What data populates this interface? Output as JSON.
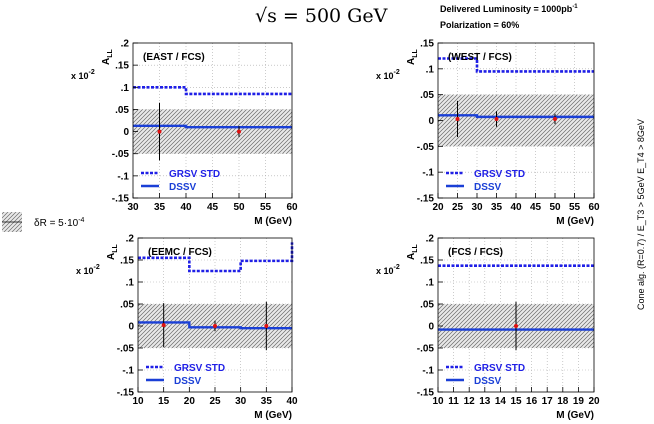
{
  "header": {
    "energy_label": "√s = 500 GeV",
    "luminosity_label": "Delivered Luminosity = 1000pb",
    "luminosity_sup": "-1",
    "polarization_label": "Polarization = 60%"
  },
  "side_label": "Cone alg. (R=0.7) / E_T3 > 5GeV  E_T4 > 8GeV",
  "legend_common": {
    "band_label": "δR = 5·10",
    "band_sup": "-4",
    "grsv_label": "GRSV STD",
    "dssv_label": "DSSV"
  },
  "colors": {
    "grsv": "#1f1fe6",
    "dssv": "#1a3fd6",
    "point": "#e01010",
    "band": "#555555",
    "grid": "#aaaaaa"
  },
  "chart_data": [
    {
      "type": "line",
      "panel": "top-left",
      "title": "(EAST / FCS)",
      "ylabel": "A_LL",
      "yscale_label": "x 10",
      "yscale_sup": "-2",
      "xlabel": "M (GeV)",
      "xlim": [
        30,
        60
      ],
      "ylim": [
        -0.15,
        0.2
      ],
      "xticks": [
        30,
        35,
        40,
        45,
        50,
        55,
        60
      ],
      "yticks": [
        -0.15,
        -0.1,
        -0.05,
        0,
        0.05,
        0.1,
        0.15,
        0.2
      ],
      "band": [
        -0.05,
        0.05
      ],
      "series": [
        {
          "name": "GRSV STD",
          "style": "dashed",
          "steps": [
            [
              30,
              40,
              0.1
            ],
            [
              40,
              60,
              0.085
            ]
          ]
        },
        {
          "name": "DSSV",
          "style": "solid",
          "steps": [
            [
              30,
              40,
              0.013
            ],
            [
              40,
              60,
              0.01
            ]
          ]
        }
      ],
      "points": [
        {
          "x": 35,
          "y": 0.0,
          "err": 0.065
        },
        {
          "x": 50,
          "y": 0.0,
          "err": 0.012
        }
      ]
    },
    {
      "type": "line",
      "panel": "top-right",
      "title": "(WEST / FCS)",
      "ylabel": "A_LL",
      "yscale_label": "x 10",
      "yscale_sup": "-2",
      "xlabel": "M (GeV)",
      "xlim": [
        20,
        60
      ],
      "ylim": [
        -0.15,
        0.15
      ],
      "xticks": [
        20,
        25,
        30,
        35,
        40,
        45,
        50,
        55,
        60
      ],
      "yticks": [
        -0.15,
        -0.1,
        -0.05,
        0,
        0.05,
        0.1,
        0.15
      ],
      "band": [
        -0.05,
        0.05
      ],
      "series": [
        {
          "name": "GRSV STD",
          "style": "dashed",
          "steps": [
            [
              20,
              30,
              0.12
            ],
            [
              30,
              60,
              0.095
            ]
          ]
        },
        {
          "name": "DSSV",
          "style": "solid",
          "steps": [
            [
              20,
              30,
              0.01
            ],
            [
              30,
              60,
              0.007
            ]
          ]
        }
      ],
      "points": [
        {
          "x": 25,
          "y": 0.003,
          "err": 0.035
        },
        {
          "x": 35,
          "y": 0.003,
          "err": 0.015
        },
        {
          "x": 50,
          "y": 0.003,
          "err": 0.01
        }
      ]
    },
    {
      "type": "line",
      "panel": "bottom-left",
      "title": "(EEMC / FCS)",
      "ylabel": "A_LL",
      "yscale_label": "x 10",
      "yscale_sup": "-2",
      "xlabel": "M (GeV)",
      "xlim": [
        10,
        40
      ],
      "ylim": [
        -0.15,
        0.2
      ],
      "xticks": [
        10,
        15,
        20,
        25,
        30,
        35,
        40
      ],
      "yticks": [
        -0.15,
        -0.1,
        -0.05,
        0,
        0.05,
        0.1,
        0.15,
        0.2
      ],
      "band": [
        -0.05,
        0.05
      ],
      "series": [
        {
          "name": "GRSV STD",
          "style": "dashed",
          "steps": [
            [
              10,
              20,
              0.155
            ],
            [
              20,
              30,
              0.125
            ],
            [
              30,
              40,
              0.148
            ],
            [
              40,
              40,
              0.19
            ]
          ]
        },
        {
          "name": "DSSV",
          "style": "solid",
          "steps": [
            [
              10,
              20,
              0.008
            ],
            [
              20,
              30,
              -0.003
            ],
            [
              30,
              40,
              -0.005
            ]
          ]
        }
      ],
      "points": [
        {
          "x": 15,
          "y": 0.002,
          "err": 0.05
        },
        {
          "x": 25,
          "y": 0.0,
          "err": 0.012
        },
        {
          "x": 35,
          "y": 0.0,
          "err": 0.055
        }
      ]
    },
    {
      "type": "line",
      "panel": "bottom-right",
      "title": "(FCS / FCS)",
      "ylabel": "A_LL",
      "yscale_label": "x 10",
      "yscale_sup": "-2",
      "xlabel": "M (GeV)",
      "xlim": [
        10,
        20
      ],
      "ylim": [
        -0.15,
        0.2
      ],
      "xticks": [
        10,
        11,
        12,
        13,
        14,
        15,
        16,
        17,
        18,
        19,
        20
      ],
      "yticks": [
        -0.15,
        -0.1,
        -0.05,
        0,
        0.05,
        0.1,
        0.15,
        0.2
      ],
      "band": [
        -0.05,
        0.05
      ],
      "series": [
        {
          "name": "GRSV STD",
          "style": "dashed",
          "steps": [
            [
              10,
              20,
              0.137
            ]
          ]
        },
        {
          "name": "DSSV",
          "style": "solid",
          "steps": [
            [
              10,
              20,
              -0.008
            ]
          ]
        }
      ],
      "points": [
        {
          "x": 15,
          "y": 0.0,
          "err": 0.055
        }
      ]
    }
  ]
}
